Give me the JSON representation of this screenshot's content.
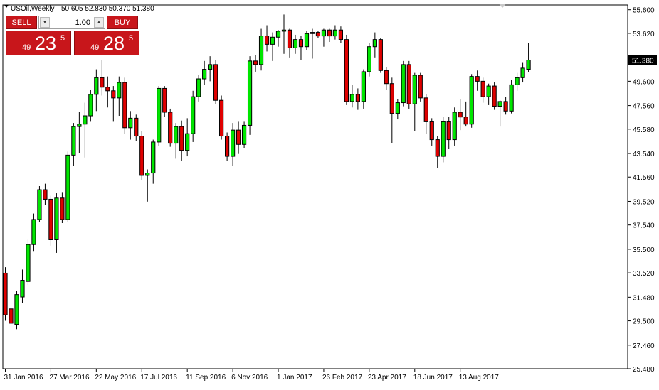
{
  "header": {
    "symbol_label": "USOil,Weekly",
    "ohlc_label": "50.605 52.830 50.370 51.380"
  },
  "trade_panel": {
    "sell_label": "SELL",
    "buy_label": "BUY",
    "lot_value": "1.00",
    "sell_price": {
      "small": "49",
      "big": "23",
      "sup": "5"
    },
    "buy_price": {
      "small": "49",
      "big": "28",
      "sup": "5"
    },
    "down_arrow_icon": "triangle-down-icon",
    "up_arrow_icon": "triangle-up-icon"
  },
  "colors": {
    "bull": "#00e600",
    "bear": "#e00000",
    "outline": "#000000",
    "axis": "#000000",
    "panel": "#c8161b"
  },
  "chart_data": {
    "type": "candlestick",
    "symbol": "USOil",
    "timeframe": "Weekly",
    "ylim": [
      25.48,
      56.0
    ],
    "y_ticks": [
      "55.600",
      "53.620",
      "51.580",
      "49.600",
      "47.560",
      "45.580",
      "43.540",
      "41.560",
      "39.520",
      "37.540",
      "35.500",
      "33.520",
      "31.480",
      "29.500",
      "27.460",
      "25.480"
    ],
    "x_ticks": [
      {
        "label": "31 Jan 2016",
        "index": 0
      },
      {
        "label": "27 Mar 2016",
        "index": 8
      },
      {
        "label": "22 May 2016",
        "index": 16
      },
      {
        "label": "17 Jul 2016",
        "index": 24
      },
      {
        "label": "11 Sep 2016",
        "index": 32
      },
      {
        "label": "6 Nov 2016",
        "index": 40
      },
      {
        "label": "1 Jan 2017",
        "index": 48
      },
      {
        "label": "26 Feb 2017",
        "index": 56
      },
      {
        "label": "23 Apr 2017",
        "index": 64
      },
      {
        "label": "18 Jun 2017",
        "index": 72
      },
      {
        "label": "13 Aug 2017",
        "index": 80
      }
    ],
    "current_price": "51.380",
    "candles": [
      [
        33.5,
        34.0,
        29.5,
        30.0
      ],
      [
        30.5,
        31.5,
        26.2,
        29.3
      ],
      [
        29.2,
        32.0,
        28.8,
        31.7
      ],
      [
        31.5,
        33.8,
        31.0,
        32.9
      ],
      [
        32.8,
        36.3,
        32.5,
        35.9
      ],
      [
        35.9,
        38.5,
        35.3,
        38.0
      ],
      [
        38.0,
        40.8,
        37.8,
        40.5
      ],
      [
        40.5,
        41.0,
        39.2,
        39.7
      ],
      [
        39.7,
        40.0,
        35.8,
        36.3
      ],
      [
        36.3,
        40.2,
        35.2,
        39.8
      ],
      [
        39.8,
        40.3,
        37.7,
        38.0
      ],
      [
        38.0,
        43.7,
        37.8,
        43.4
      ],
      [
        43.4,
        46.1,
        42.5,
        45.8
      ],
      [
        45.8,
        47.0,
        43.6,
        46.0
      ],
      [
        46.0,
        47.8,
        43.2,
        46.7
      ],
      [
        46.7,
        48.9,
        46.2,
        48.5
      ],
      [
        48.5,
        50.6,
        47.1,
        49.9
      ],
      [
        49.9,
        51.4,
        48.4,
        49.1
      ],
      [
        49.1,
        50.0,
        47.4,
        48.8
      ],
      [
        48.8,
        49.2,
        46.2,
        48.2
      ],
      [
        48.2,
        50.0,
        46.7,
        49.5
      ],
      [
        49.5,
        49.9,
        45.2,
        45.7
      ],
      [
        45.7,
        47.1,
        44.7,
        46.5
      ],
      [
        46.5,
        46.8,
        44.6,
        45.0
      ],
      [
        45.0,
        45.4,
        41.3,
        41.7
      ],
      [
        41.7,
        42.2,
        39.5,
        41.9
      ],
      [
        41.9,
        44.7,
        41.0,
        44.5
      ],
      [
        44.5,
        49.2,
        44.2,
        49.0
      ],
      [
        49.0,
        49.2,
        46.6,
        47.0
      ],
      [
        47.0,
        47.3,
        44.1,
        44.4
      ],
      [
        44.4,
        46.1,
        43.1,
        45.8
      ],
      [
        45.8,
        46.3,
        42.9,
        43.8
      ],
      [
        43.8,
        46.5,
        43.3,
        45.2
      ],
      [
        45.2,
        48.8,
        44.5,
        48.3
      ],
      [
        48.3,
        50.1,
        47.9,
        49.8
      ],
      [
        49.8,
        51.3,
        49.3,
        50.6
      ],
      [
        50.6,
        51.7,
        49.6,
        51.0
      ],
      [
        51.0,
        51.4,
        47.7,
        48.0
      ],
      [
        48.0,
        48.4,
        44.7,
        45.0
      ],
      [
        45.0,
        45.3,
        42.9,
        43.3
      ],
      [
        43.3,
        46.1,
        42.5,
        45.5
      ],
      [
        45.5,
        46.2,
        43.5,
        44.3
      ],
      [
        44.3,
        46.2,
        44.0,
        45.9
      ],
      [
        45.9,
        51.7,
        45.1,
        51.3
      ],
      [
        51.3,
        51.8,
        50.4,
        51.0
      ],
      [
        51.0,
        54.0,
        50.5,
        53.4
      ],
      [
        53.4,
        54.3,
        52.1,
        52.7
      ],
      [
        52.7,
        53.7,
        51.3,
        53.3
      ],
      [
        53.3,
        53.9,
        52.5,
        53.8
      ],
      [
        53.8,
        55.2,
        51.9,
        53.9
      ],
      [
        53.9,
        54.0,
        51.6,
        52.4
      ],
      [
        52.4,
        53.5,
        51.9,
        53.1
      ],
      [
        53.1,
        53.4,
        51.4,
        52.5
      ],
      [
        52.5,
        53.8,
        52.2,
        53.6
      ],
      [
        53.6,
        54.0,
        51.5,
        53.7
      ],
      [
        53.7,
        53.8,
        53.2,
        53.4
      ],
      [
        53.4,
        54.0,
        52.5,
        53.9
      ],
      [
        53.9,
        54.0,
        52.9,
        53.4
      ],
      [
        53.4,
        54.3,
        53.1,
        53.9
      ],
      [
        53.9,
        54.2,
        52.8,
        53.1
      ],
      [
        53.1,
        53.5,
        47.6,
        47.9
      ],
      [
        47.9,
        49.3,
        47.4,
        48.5
      ],
      [
        48.5,
        49.0,
        47.2,
        47.9
      ],
      [
        47.9,
        50.6,
        47.3,
        50.4
      ],
      [
        50.4,
        52.8,
        50.0,
        52.5
      ],
      [
        52.5,
        53.7,
        51.6,
        53.1
      ],
      [
        53.1,
        53.2,
        50.3,
        50.5
      ],
      [
        50.5,
        50.8,
        48.9,
        49.4
      ],
      [
        49.4,
        49.9,
        44.4,
        46.9
      ],
      [
        46.9,
        48.1,
        46.4,
        47.8
      ],
      [
        47.8,
        51.3,
        47.5,
        51.0
      ],
      [
        51.0,
        51.3,
        47.3,
        47.7
      ],
      [
        47.7,
        50.3,
        45.4,
        50.1
      ],
      [
        50.1,
        50.3,
        47.9,
        48.2
      ],
      [
        48.2,
        48.5,
        45.2,
        46.2
      ],
      [
        46.2,
        46.5,
        44.2,
        44.7
      ],
      [
        44.7,
        45.0,
        42.3,
        43.3
      ],
      [
        43.3,
        46.6,
        42.8,
        46.2
      ],
      [
        46.2,
        46.6,
        43.9,
        44.7
      ],
      [
        44.7,
        47.4,
        44.2,
        47.0
      ],
      [
        47.0,
        48.1,
        45.5,
        46.6
      ],
      [
        46.6,
        47.9,
        45.8,
        46.0
      ],
      [
        46.0,
        50.2,
        45.7,
        50.0
      ],
      [
        50.0,
        50.5,
        48.8,
        49.6
      ],
      [
        49.6,
        49.9,
        47.8,
        48.3
      ],
      [
        48.3,
        49.4,
        47.6,
        49.2
      ],
      [
        49.2,
        49.5,
        47.2,
        47.5
      ],
      [
        47.5,
        48.0,
        45.8,
        47.9
      ],
      [
        47.9,
        48.3,
        46.8,
        47.1
      ],
      [
        47.1,
        49.7,
        46.9,
        49.3
      ],
      [
        49.3,
        50.3,
        48.8,
        49.9
      ],
      [
        49.9,
        51.2,
        49.5,
        50.7
      ],
      [
        50.605,
        52.83,
        50.37,
        51.38
      ]
    ]
  }
}
